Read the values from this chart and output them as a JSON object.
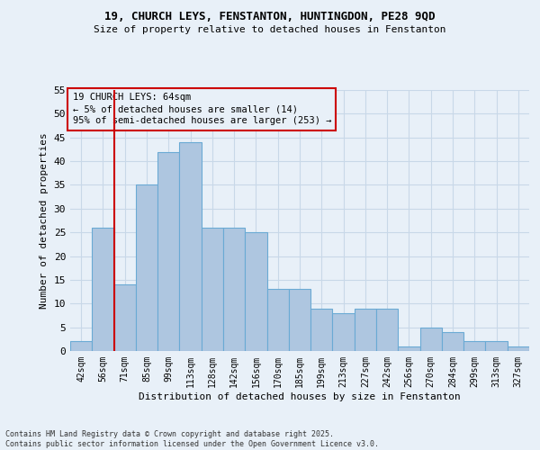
{
  "title1": "19, CHURCH LEYS, FENSTANTON, HUNTINGDON, PE28 9QD",
  "title2": "Size of property relative to detached houses in Fenstanton",
  "xlabel": "Distribution of detached houses by size in Fenstanton",
  "ylabel": "Number of detached properties",
  "categories": [
    "42sqm",
    "56sqm",
    "71sqm",
    "85sqm",
    "99sqm",
    "113sqm",
    "128sqm",
    "142sqm",
    "156sqm",
    "170sqm",
    "185sqm",
    "199sqm",
    "213sqm",
    "227sqm",
    "242sqm",
    "256sqm",
    "270sqm",
    "284sqm",
    "299sqm",
    "313sqm",
    "327sqm"
  ],
  "values": [
    2,
    26,
    14,
    35,
    42,
    44,
    26,
    26,
    25,
    13,
    13,
    9,
    8,
    9,
    9,
    1,
    5,
    4,
    2,
    2,
    1
  ],
  "bar_color": "#aec6e0",
  "bar_edge_color": "#6aaad4",
  "highlight_color": "#cc0000",
  "annotation_text": "19 CHURCH LEYS: 64sqm\n← 5% of detached houses are smaller (14)\n95% of semi-detached houses are larger (253) →",
  "annotation_box_color": "#cc0000",
  "ylim": [
    0,
    55
  ],
  "yticks": [
    0,
    5,
    10,
    15,
    20,
    25,
    30,
    35,
    40,
    45,
    50,
    55
  ],
  "grid_color": "#c8d8e8",
  "bg_color": "#e8f0f8",
  "footer1": "Contains HM Land Registry data © Crown copyright and database right 2025.",
  "footer2": "Contains public sector information licensed under the Open Government Licence v3.0."
}
